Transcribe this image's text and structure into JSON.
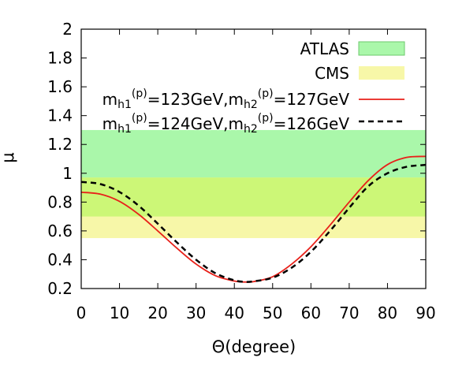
{
  "chart_data": {
    "type": "line",
    "xlabel": "Θ(degree)",
    "ylabel": "μ",
    "xlim": [
      0,
      90
    ],
    "ylim": [
      0.2,
      2
    ],
    "xticks": [
      "0",
      "10",
      "20",
      "30",
      "40",
      "50",
      "60",
      "70",
      "80",
      "90"
    ],
    "yticks": [
      "0.2",
      "0.4",
      "0.6",
      "0.8",
      "1",
      "1.2",
      "1.4",
      "1.6",
      "1.8",
      "2"
    ],
    "legend_position": "top-right",
    "bands": [
      {
        "name": "ATLAS",
        "range": [
          0.7,
          1.3
        ],
        "color": "#aaf7aa"
      },
      {
        "name": "CMS",
        "range": [
          0.55,
          0.97
        ],
        "color": "#f7f7a8"
      }
    ],
    "overlap_color": "#ccf777",
    "series": [
      {
        "name": "m_h1^(p)=123GeV, m_h2^(p)=127GeV",
        "label_parts": {
          "m": "m",
          "h1": "h1",
          "p": "(p)",
          "v1": "=123GeV,",
          "h2": "h2",
          "v2": "=127GeV"
        },
        "color": "#e8211a",
        "dash": "solid",
        "x": [
          0,
          5,
          10,
          15,
          20,
          25,
          30,
          35,
          40,
          43,
          45,
          50,
          55,
          60,
          65,
          70,
          75,
          80,
          85,
          90
        ],
        "y": [
          0.868,
          0.855,
          0.805,
          0.715,
          0.6,
          0.48,
          0.37,
          0.29,
          0.252,
          0.245,
          0.248,
          0.282,
          0.37,
          0.49,
          0.64,
          0.8,
          0.95,
          1.06,
          1.11,
          1.117
        ]
      },
      {
        "name": "m_h1^(p)=124GeV, m_h2^(p)=126GeV",
        "label_parts": {
          "m": "m",
          "h1": "h1",
          "p": "(p)",
          "v1": "=124GeV,",
          "h2": "h2",
          "v2": "=126GeV"
        },
        "color": "#000000",
        "dash": "dashed",
        "x": [
          0,
          5,
          10,
          15,
          20,
          25,
          30,
          35,
          40,
          43,
          45,
          50,
          55,
          60,
          65,
          70,
          75,
          80,
          85,
          90
        ],
        "y": [
          0.94,
          0.925,
          0.87,
          0.775,
          0.65,
          0.52,
          0.4,
          0.307,
          0.257,
          0.246,
          0.25,
          0.275,
          0.345,
          0.455,
          0.6,
          0.76,
          0.91,
          1.0,
          1.045,
          1.058
        ]
      }
    ]
  }
}
